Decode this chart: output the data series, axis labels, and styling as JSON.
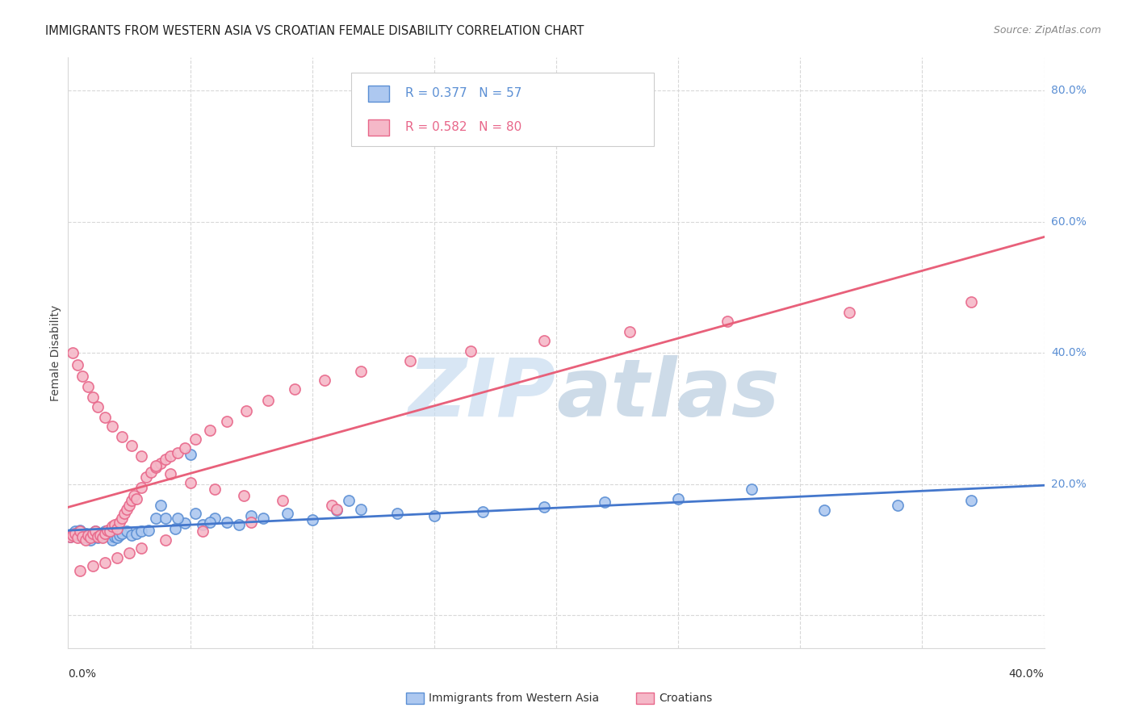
{
  "title": "IMMIGRANTS FROM WESTERN ASIA VS CROATIAN FEMALE DISABILITY CORRELATION CHART",
  "source": "Source: ZipAtlas.com",
  "ylabel": "Female Disability",
  "legend1_color": "#5b8fd4",
  "legend2_color": "#e8678a",
  "trend1_color": "#4477cc",
  "trend2_color": "#e8607a",
  "scatter1_facecolor": "#adc8f0",
  "scatter2_facecolor": "#f5b8c8",
  "background_color": "#ffffff",
  "grid_color": "#d8d8d8",
  "right_label_color": "#5b8fd4",
  "blue_scatter_x": [
    0.001,
    0.002,
    0.003,
    0.004,
    0.005,
    0.006,
    0.007,
    0.008,
    0.009,
    0.01,
    0.011,
    0.012,
    0.013,
    0.014,
    0.015,
    0.016,
    0.017,
    0.018,
    0.019,
    0.02,
    0.021,
    0.022,
    0.024,
    0.026,
    0.028,
    0.03,
    0.033,
    0.036,
    0.04,
    0.044,
    0.048,
    0.055,
    0.06,
    0.065,
    0.07,
    0.08,
    0.09,
    0.1,
    0.11,
    0.12,
    0.135,
    0.15,
    0.17,
    0.195,
    0.22,
    0.25,
    0.28,
    0.31,
    0.34,
    0.37,
    0.05,
    0.038,
    0.045,
    0.052,
    0.058,
    0.075,
    0.115
  ],
  "blue_scatter_y": [
    0.12,
    0.125,
    0.128,
    0.122,
    0.13,
    0.118,
    0.125,
    0.12,
    0.115,
    0.122,
    0.128,
    0.118,
    0.124,
    0.12,
    0.128,
    0.122,
    0.119,
    0.115,
    0.12,
    0.118,
    0.122,
    0.125,
    0.128,
    0.122,
    0.125,
    0.128,
    0.13,
    0.148,
    0.148,
    0.132,
    0.14,
    0.138,
    0.148,
    0.142,
    0.138,
    0.148,
    0.155,
    0.145,
    0.16,
    0.162,
    0.155,
    0.152,
    0.158,
    0.165,
    0.172,
    0.178,
    0.192,
    0.16,
    0.168,
    0.175,
    0.245,
    0.168,
    0.148,
    0.155,
    0.142,
    0.152,
    0.175
  ],
  "pink_scatter_x": [
    0.001,
    0.002,
    0.003,
    0.004,
    0.005,
    0.006,
    0.007,
    0.008,
    0.009,
    0.01,
    0.011,
    0.012,
    0.013,
    0.014,
    0.015,
    0.016,
    0.017,
    0.018,
    0.019,
    0.02,
    0.021,
    0.022,
    0.023,
    0.024,
    0.025,
    0.026,
    0.027,
    0.028,
    0.03,
    0.032,
    0.034,
    0.036,
    0.038,
    0.04,
    0.042,
    0.045,
    0.048,
    0.052,
    0.058,
    0.065,
    0.073,
    0.082,
    0.093,
    0.105,
    0.12,
    0.14,
    0.165,
    0.195,
    0.23,
    0.27,
    0.32,
    0.37,
    0.002,
    0.004,
    0.006,
    0.008,
    0.01,
    0.012,
    0.015,
    0.018,
    0.022,
    0.026,
    0.03,
    0.036,
    0.042,
    0.05,
    0.06,
    0.072,
    0.088,
    0.108,
    0.005,
    0.01,
    0.015,
    0.02,
    0.025,
    0.03,
    0.04,
    0.055,
    0.075,
    0.11
  ],
  "pink_scatter_y": [
    0.12,
    0.122,
    0.125,
    0.118,
    0.128,
    0.12,
    0.115,
    0.122,
    0.118,
    0.125,
    0.128,
    0.12,
    0.122,
    0.118,
    0.125,
    0.13,
    0.128,
    0.135,
    0.138,
    0.132,
    0.142,
    0.148,
    0.155,
    0.162,
    0.168,
    0.175,
    0.182,
    0.178,
    0.195,
    0.21,
    0.218,
    0.225,
    0.232,
    0.238,
    0.242,
    0.248,
    0.255,
    0.268,
    0.282,
    0.295,
    0.312,
    0.328,
    0.345,
    0.358,
    0.372,
    0.388,
    0.402,
    0.418,
    0.432,
    0.448,
    0.462,
    0.478,
    0.4,
    0.382,
    0.365,
    0.348,
    0.332,
    0.318,
    0.302,
    0.288,
    0.272,
    0.258,
    0.242,
    0.228,
    0.215,
    0.202,
    0.192,
    0.182,
    0.175,
    0.168,
    0.068,
    0.075,
    0.08,
    0.088,
    0.095,
    0.102,
    0.115,
    0.128,
    0.142,
    0.162
  ],
  "xlim": [
    0.0,
    0.4
  ],
  "ylim": [
    -0.05,
    0.85
  ],
  "ytick_positions": [
    0.0,
    0.2,
    0.4,
    0.6,
    0.8
  ],
  "xtick_positions": [
    0.05,
    0.1,
    0.15,
    0.2,
    0.25,
    0.3,
    0.35
  ],
  "right_ytick_labels": [
    "80.0%",
    "60.0%",
    "40.0%",
    "20.0%"
  ],
  "right_ytick_vals": [
    0.8,
    0.6,
    0.4,
    0.2
  ]
}
